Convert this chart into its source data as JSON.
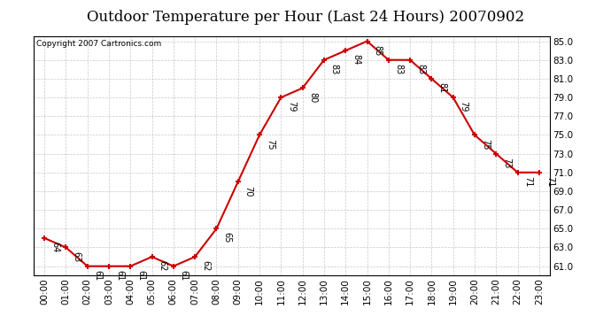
{
  "title": "Outdoor Temperature per Hour (Last 24 Hours) 20070902",
  "copyright": "Copyright 2007 Cartronics.com",
  "hours": [
    "00:00",
    "01:00",
    "02:00",
    "03:00",
    "04:00",
    "05:00",
    "06:00",
    "07:00",
    "08:00",
    "09:00",
    "10:00",
    "11:00",
    "12:00",
    "13:00",
    "14:00",
    "15:00",
    "16:00",
    "17:00",
    "18:00",
    "19:00",
    "20:00",
    "21:00",
    "22:00",
    "23:00"
  ],
  "temps": [
    64,
    63,
    61,
    61,
    61,
    62,
    61,
    62,
    65,
    70,
    75,
    79,
    80,
    83,
    84,
    85,
    83,
    83,
    81,
    79,
    75,
    73,
    71,
    71
  ],
  "line_color": "#cc0000",
  "marker": "+",
  "ylim_min": 61.0,
  "ylim_max": 85.0,
  "ytick_step": 2.0,
  "background_color": "#ffffff",
  "grid_color": "#c8c8c8",
  "title_fontsize": 12,
  "annot_fontsize": 7,
  "tick_fontsize": 7.5,
  "copyright_fontsize": 6.5
}
